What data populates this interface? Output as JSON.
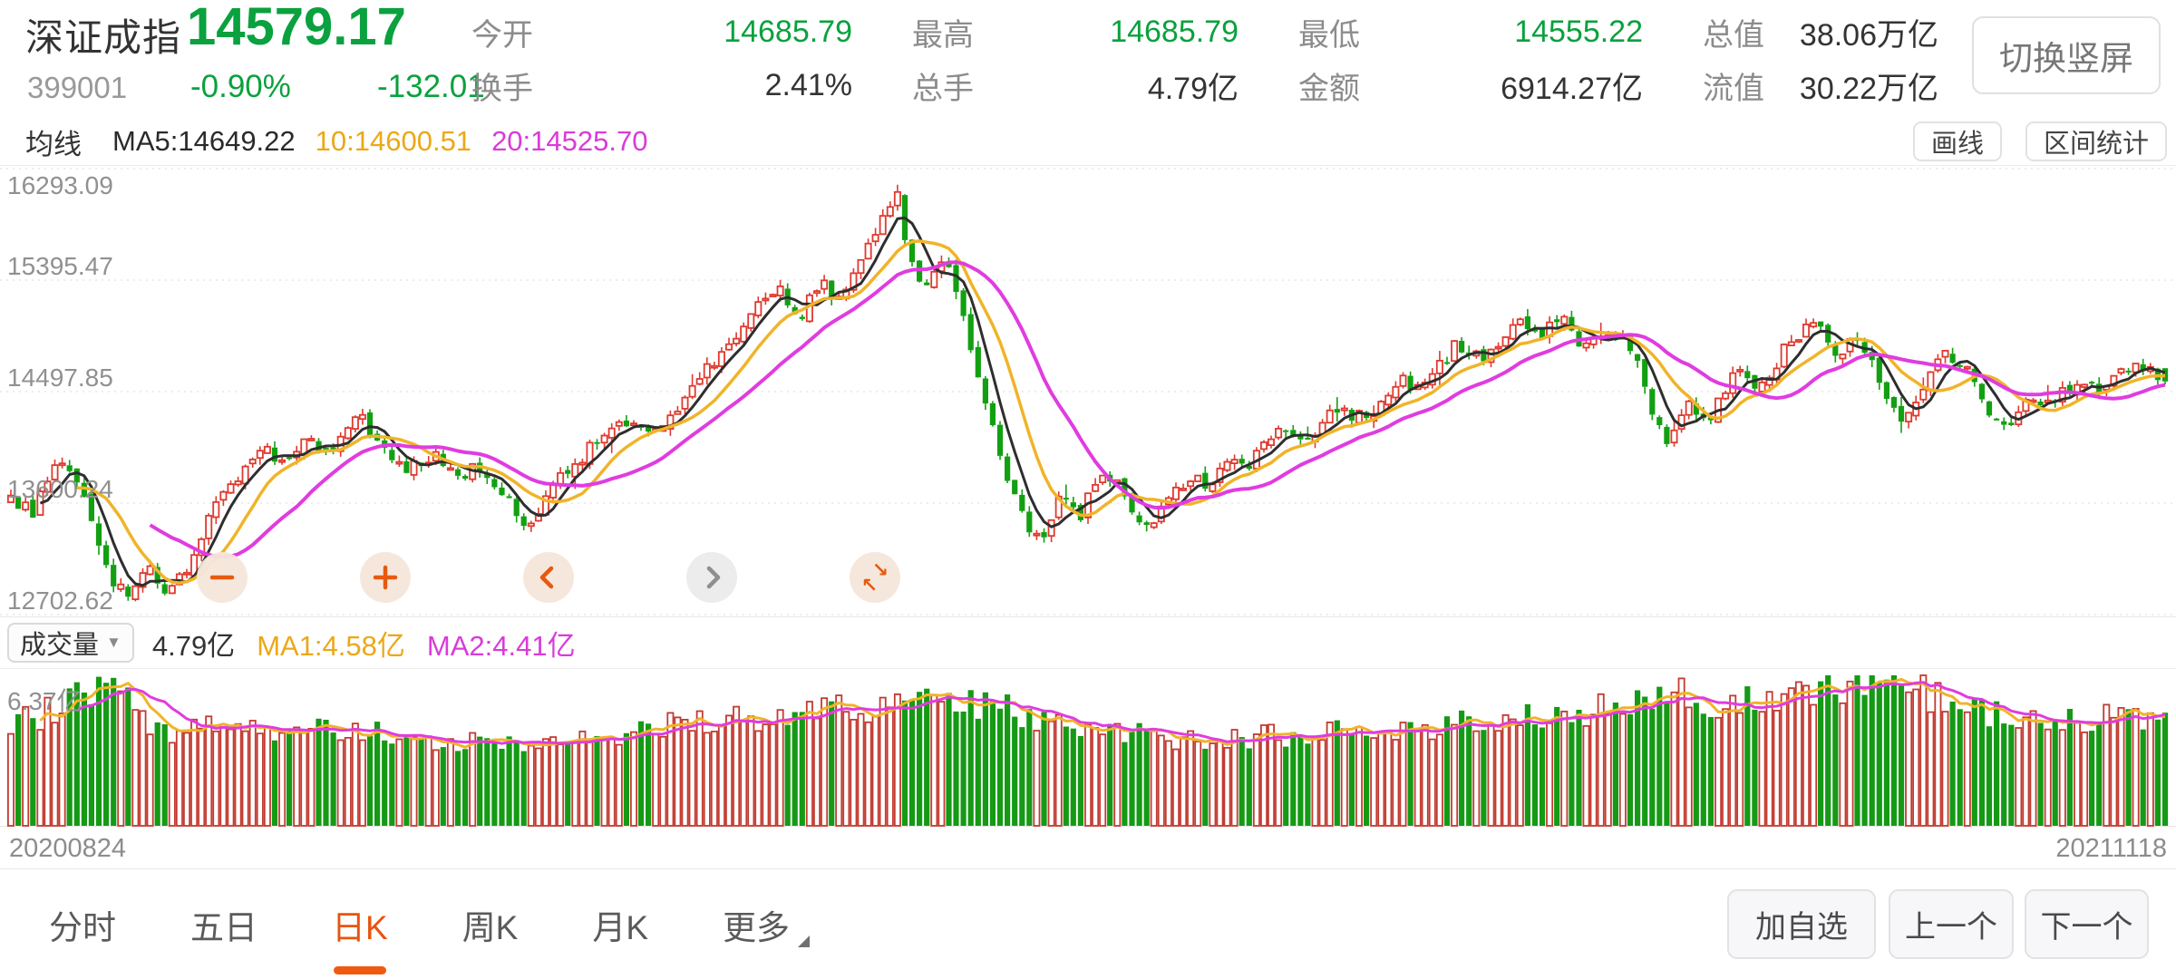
{
  "header": {
    "name": "深证成指",
    "code": "399001",
    "price": "14579.17",
    "change_pct": "-0.90%",
    "change_amt": "-132.01",
    "stats": [
      {
        "label": "今开",
        "value": "14685.79",
        "color": "green"
      },
      {
        "label": "换手",
        "value": "2.41%",
        "color": "dark"
      },
      {
        "label": "最高",
        "value": "14685.79",
        "color": "green"
      },
      {
        "label": "总手",
        "value": "4.79亿",
        "color": "dark"
      },
      {
        "label": "最低",
        "value": "14555.22",
        "color": "green"
      },
      {
        "label": "金额",
        "value": "6914.27亿",
        "color": "dark"
      },
      {
        "label": "总值",
        "value": "38.06万亿",
        "color": "dark"
      },
      {
        "label": "流值",
        "value": "30.22万亿",
        "color": "dark"
      }
    ],
    "rotate_button": "切换竖屏"
  },
  "ma_bar": {
    "title": "均线",
    "ma5": "MA5:14649.22",
    "ma10": "10:14600.51",
    "ma20": "20:14525.70",
    "draw_button": "画线",
    "range_button": "区间统计"
  },
  "volume_bar": {
    "title": "成交量",
    "caret": "▼",
    "current": "4.79亿",
    "ma1": "MA1:4.58亿",
    "ma2": "MA2:4.41亿",
    "max_label": "6.37亿"
  },
  "overlay_buttons": {
    "collapse_top_arrow": "↘",
    "collapse_bottom_arrow": "↖"
  },
  "x_axis": {
    "start": "20200824",
    "end": "20211118"
  },
  "bottom_nav": {
    "tabs": [
      {
        "label": "分时",
        "active": false
      },
      {
        "label": "五日",
        "active": false
      },
      {
        "label": "日K",
        "active": true
      },
      {
        "label": "周K",
        "active": false
      },
      {
        "label": "月K",
        "active": false
      },
      {
        "label": "更多",
        "active": false
      }
    ],
    "add_watchlist": "加自选",
    "prev": "上一个",
    "next": "下一个"
  },
  "chart_data": {
    "type": "candlestick",
    "title": "深证成指 日K 20200824-20211118",
    "y_ticks": [
      16293.09,
      15395.47,
      14497.85,
      13600.24,
      12702.62
    ],
    "y_top": 16293.09,
    "y_bottom": 12702.62,
    "x_start": "20200824",
    "x_end": "20211118",
    "candle_count": 295,
    "seed": 20211118,
    "last_candle": {
      "open": 14685.79,
      "high": 14685.79,
      "low": 14555.22,
      "close": 14579.17
    },
    "ma_periods": [
      5,
      10,
      20
    ],
    "ma_values_current": {
      "ma5": 14649.22,
      "ma10": 14600.51,
      "ma20": 14525.7
    },
    "price_keyframes": [
      [
        0.0,
        13620
      ],
      [
        0.01,
        13520
      ],
      [
        0.022,
        13920
      ],
      [
        0.032,
        13780
      ],
      [
        0.04,
        13340
      ],
      [
        0.048,
        12950
      ],
      [
        0.056,
        12830
      ],
      [
        0.064,
        13090
      ],
      [
        0.072,
        12900
      ],
      [
        0.08,
        13020
      ],
      [
        0.088,
        13300
      ],
      [
        0.096,
        13690
      ],
      [
        0.106,
        13820
      ],
      [
        0.116,
        14060
      ],
      [
        0.126,
        13900
      ],
      [
        0.136,
        14110
      ],
      [
        0.15,
        14020
      ],
      [
        0.162,
        14290
      ],
      [
        0.172,
        14050
      ],
      [
        0.185,
        13880
      ],
      [
        0.196,
        13990
      ],
      [
        0.206,
        13790
      ],
      [
        0.218,
        13900
      ],
      [
        0.23,
        13610
      ],
      [
        0.24,
        13430
      ],
      [
        0.256,
        13810
      ],
      [
        0.27,
        14060
      ],
      [
        0.285,
        14260
      ],
      [
        0.3,
        14210
      ],
      [
        0.315,
        14500
      ],
      [
        0.33,
        14810
      ],
      [
        0.345,
        15120
      ],
      [
        0.356,
        15390
      ],
      [
        0.366,
        15080
      ],
      [
        0.376,
        15360
      ],
      [
        0.386,
        15210
      ],
      [
        0.396,
        15560
      ],
      [
        0.404,
        15880
      ],
      [
        0.411,
        16160
      ],
      [
        0.417,
        15560
      ],
      [
        0.425,
        15310
      ],
      [
        0.433,
        15600
      ],
      [
        0.441,
        15140
      ],
      [
        0.451,
        14480
      ],
      [
        0.461,
        13880
      ],
      [
        0.47,
        13470
      ],
      [
        0.478,
        13280
      ],
      [
        0.487,
        13660
      ],
      [
        0.496,
        13490
      ],
      [
        0.506,
        13860
      ],
      [
        0.516,
        13690
      ],
      [
        0.526,
        13390
      ],
      [
        0.536,
        13560
      ],
      [
        0.546,
        13810
      ],
      [
        0.556,
        13730
      ],
      [
        0.566,
        14010
      ],
      [
        0.576,
        13910
      ],
      [
        0.586,
        14190
      ],
      [
        0.6,
        14090
      ],
      [
        0.615,
        14360
      ],
      [
        0.63,
        14260
      ],
      [
        0.645,
        14610
      ],
      [
        0.656,
        14510
      ],
      [
        0.67,
        14860
      ],
      [
        0.684,
        14760
      ],
      [
        0.7,
        15060
      ],
      [
        0.71,
        14910
      ],
      [
        0.72,
        15110
      ],
      [
        0.73,
        14860
      ],
      [
        0.744,
        14960
      ],
      [
        0.755,
        14790
      ],
      [
        0.762,
        14340
      ],
      [
        0.768,
        14060
      ],
      [
        0.778,
        14410
      ],
      [
        0.788,
        14260
      ],
      [
        0.8,
        14660
      ],
      [
        0.812,
        14510
      ],
      [
        0.825,
        14890
      ],
      [
        0.838,
        15030
      ],
      [
        0.848,
        14810
      ],
      [
        0.858,
        14960
      ],
      [
        0.868,
        14560
      ],
      [
        0.878,
        14260
      ],
      [
        0.888,
        14510
      ],
      [
        0.898,
        14810
      ],
      [
        0.908,
        14660
      ],
      [
        0.918,
        14310
      ],
      [
        0.928,
        14190
      ],
      [
        0.938,
        14460
      ],
      [
        0.948,
        14410
      ],
      [
        0.958,
        14560
      ],
      [
        0.968,
        14510
      ],
      [
        0.978,
        14640
      ],
      [
        0.988,
        14700
      ],
      [
        1.0,
        14579.17
      ]
    ],
    "volume_max": 6.37,
    "volume_ma_periods": [
      5,
      10
    ],
    "volume_keyframes": [
      [
        0.0,
        4.3
      ],
      [
        0.02,
        4.9
      ],
      [
        0.045,
        6.1
      ],
      [
        0.06,
        4.6
      ],
      [
        0.08,
        3.8
      ],
      [
        0.1,
        4.4
      ],
      [
        0.13,
        3.9
      ],
      [
        0.16,
        4.2
      ],
      [
        0.2,
        3.4
      ],
      [
        0.24,
        3.6
      ],
      [
        0.28,
        3.9
      ],
      [
        0.32,
        4.4
      ],
      [
        0.36,
        4.6
      ],
      [
        0.4,
        5.1
      ],
      [
        0.43,
        5.3
      ],
      [
        0.46,
        5.0
      ],
      [
        0.5,
        4.2
      ],
      [
        0.54,
        3.7
      ],
      [
        0.58,
        3.8
      ],
      [
        0.62,
        4.0
      ],
      [
        0.66,
        4.2
      ],
      [
        0.7,
        4.5
      ],
      [
        0.73,
        4.7
      ],
      [
        0.755,
        5.3
      ],
      [
        0.775,
        5.6
      ],
      [
        0.8,
        5.1
      ],
      [
        0.83,
        5.7
      ],
      [
        0.86,
        6.1
      ],
      [
        0.88,
        5.9
      ],
      [
        0.9,
        5.3
      ],
      [
        0.92,
        4.7
      ],
      [
        0.94,
        4.3
      ],
      [
        0.96,
        4.4
      ],
      [
        0.98,
        4.6
      ],
      [
        1.0,
        4.79
      ]
    ],
    "colors": {
      "up": "#df392e",
      "down": "#12a012",
      "ma5": "#2e2e2e",
      "ma10": "#f0b429",
      "ma20": "#e03ce0",
      "grid": "#d9d9d9",
      "vol_up_stroke": "#c23b31",
      "vol_down": "#159a15",
      "accent_orange": "#e8540e",
      "text_green": "#0aa13e"
    }
  }
}
